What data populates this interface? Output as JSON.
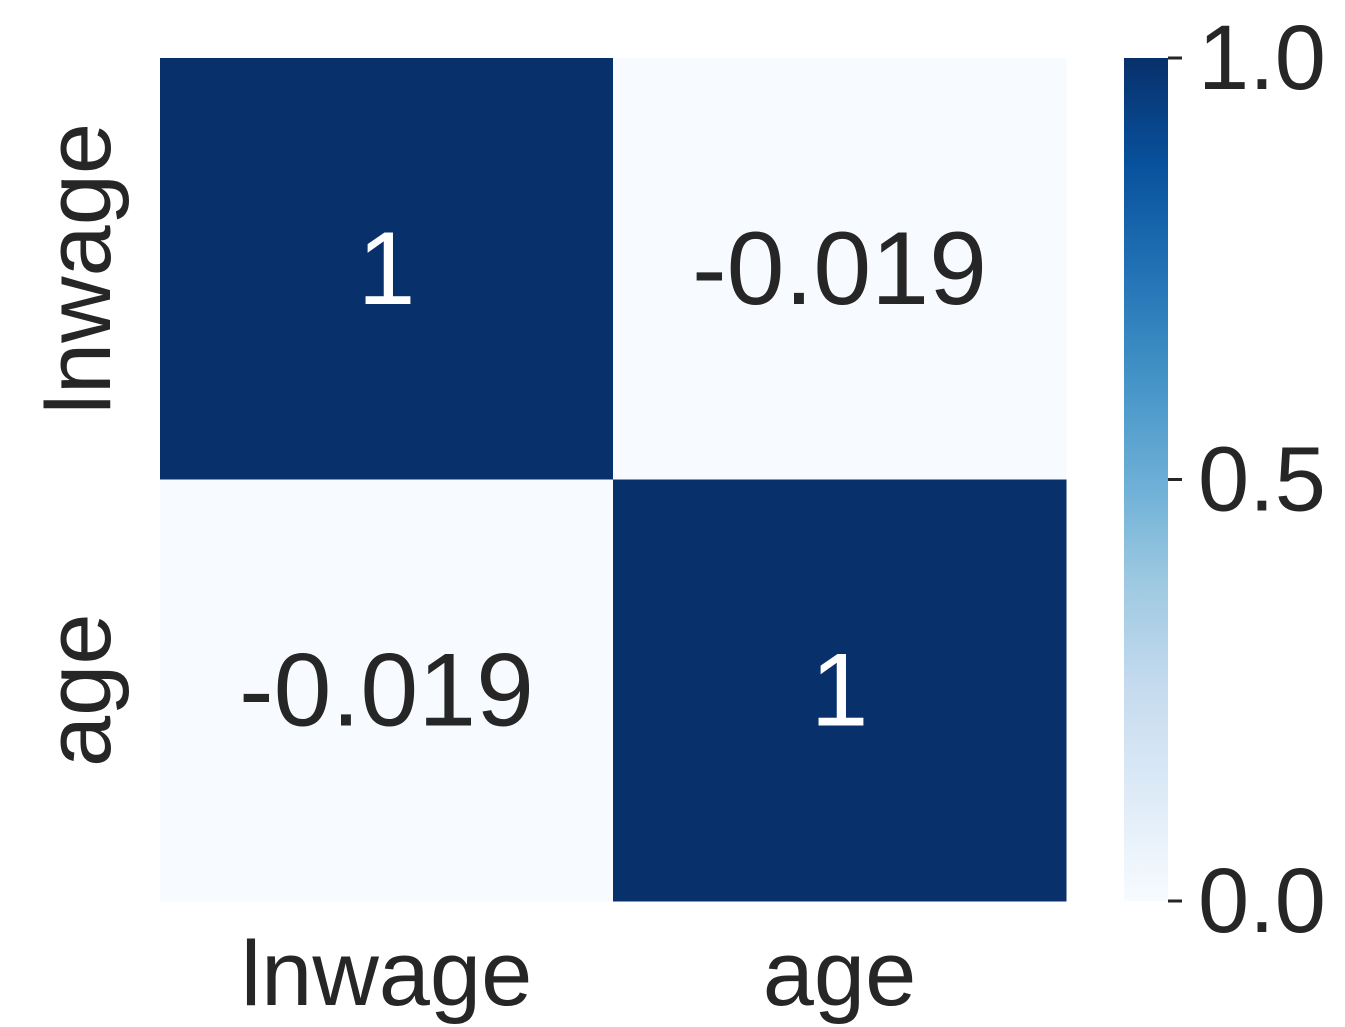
{
  "chart_data": {
    "type": "heatmap",
    "rows": [
      "lnwage",
      "age"
    ],
    "columns": [
      "lnwage",
      "age"
    ],
    "values": [
      [
        1,
        -0.019
      ],
      [
        -0.019,
        1
      ]
    ],
    "annotations": [
      [
        "1",
        "-0.019"
      ],
      [
        "-0.019",
        "1"
      ]
    ],
    "colormap": "Blues",
    "colorbar": {
      "range": [
        0.0,
        1.0
      ],
      "ticks": [
        0.0,
        0.5,
        1.0
      ],
      "tick_labels": [
        "0.0",
        "0.5",
        "1.0"
      ]
    },
    "colors": {
      "high": "#08306b",
      "low": "#f7fbff",
      "text_on_dark": "#ffffff",
      "text_on_light": "#262626"
    },
    "title": "",
    "xlabel": "",
    "ylabel": ""
  }
}
